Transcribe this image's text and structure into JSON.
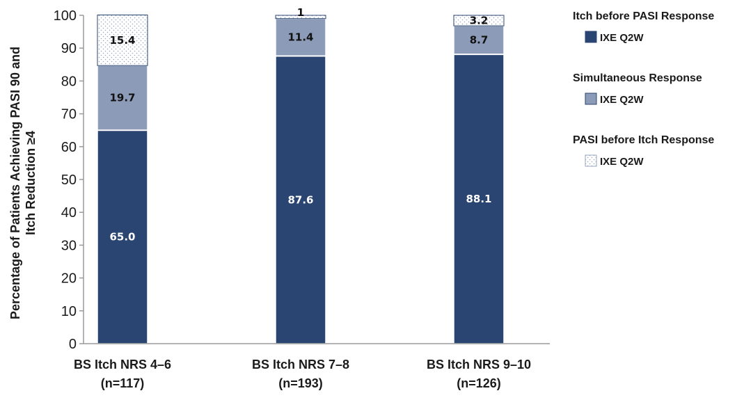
{
  "chart_data": {
    "type": "bar",
    "stacked": true,
    "ylabel": [
      "Percentage of Patients Achieving PASI 90 and",
      "Itch Reduction ≥4"
    ],
    "ylim": [
      0,
      100
    ],
    "yticks": [
      0,
      10,
      20,
      30,
      40,
      50,
      60,
      70,
      80,
      90,
      100
    ],
    "categories": [
      [
        "BS Itch NRS 4–6",
        "(n=117)"
      ],
      [
        "BS Itch NRS 7–8",
        "(n=193)"
      ],
      [
        "BS Itch NRS 9–10",
        "(n=126)"
      ]
    ],
    "series": [
      {
        "group": "Itch before PASI Response",
        "name": "IXE Q2W",
        "color": "#2b4572",
        "pattern": "solid",
        "label_color": "#ffffff",
        "values": [
          65.0,
          87.6,
          88.1
        ],
        "labels": [
          "65.0",
          "87.6",
          "88.1"
        ]
      },
      {
        "group": "Simultaneous Response",
        "name": "IXE Q2W",
        "color": "#8c9bb8",
        "pattern": "solid",
        "label_color": "#111111",
        "values": [
          19.7,
          11.4,
          8.7
        ],
        "labels": [
          "19.7",
          "11.4",
          "8.7"
        ]
      },
      {
        "group": "PASI before Itch Response",
        "name": "IXE Q2W",
        "color": "#ffffff",
        "pattern": "dotted",
        "label_color": "#111111",
        "values": [
          15.4,
          1,
          3.2
        ],
        "labels": [
          "15.4",
          "1",
          "3.2"
        ]
      }
    ],
    "legend_position": "right",
    "grid": false
  }
}
